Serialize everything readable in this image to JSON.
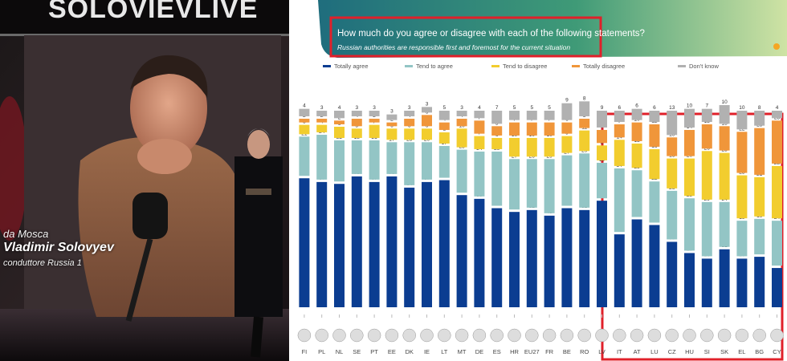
{
  "photo": {
    "sign_text": "SOLOVIEVLIVE",
    "caption_line1": "da Mosca",
    "caption_name": "Vladimir Solovyev",
    "caption_line3": "conduttore  Russia 1"
  },
  "header": {
    "question": "How much do you agree or disagree with each of the following statements?",
    "statement": "Russian authorities are responsible first and foremost for the current situation"
  },
  "colors": {
    "totally_agree": "#0b3d91",
    "tend_to_agree": "#93c5c5",
    "tend_to_disagree": "#f2cd2e",
    "totally_disagree": "#f0963a",
    "dont_know": "#b1b1b1",
    "highlight": "#e0202a"
  },
  "chart_data": {
    "type": "bar",
    "stacked": true,
    "orientation": "vertical",
    "title": "How much do you agree or disagree with each of the following statements?",
    "subtitle": "Russian authorities are responsible first and foremost for the current situation",
    "legend_placement": "top",
    "categories": [
      "FI",
      "PL",
      "NL",
      "SE",
      "PT",
      "EE",
      "DK",
      "IE",
      "LT",
      "MT",
      "DE",
      "ES",
      "HR",
      "EU27",
      "FR",
      "BE",
      "RO",
      "LV",
      "IT",
      "AT",
      "LU",
      "CZ",
      "HU",
      "SI",
      "SK",
      "EL",
      "BG",
      "CY"
    ],
    "series": [
      {
        "name": "Totally agree",
        "values": [
          69,
          67,
          66,
          70,
          67,
          70,
          64,
          67,
          68,
          60,
          58,
          53,
          51,
          52,
          49,
          53,
          52,
          57,
          39,
          47,
          44,
          35,
          29,
          26,
          31,
          26,
          27,
          21
        ]
      },
      {
        "name": "Tend to agree",
        "values": [
          21,
          24,
          22,
          18,
          21,
          17,
          23,
          20,
          17,
          23,
          24,
          29,
          27,
          26,
          29,
          27,
          29,
          19,
          34,
          25,
          22,
          26,
          28,
          29,
          24,
          19,
          19,
          24
        ]
      },
      {
        "name": "Tend to disagree",
        "values": [
          5,
          4,
          6,
          5,
          7,
          6,
          6,
          6,
          6,
          10,
          7,
          6,
          10,
          10,
          10,
          9,
          11,
          8,
          14,
          13,
          16,
          16,
          20,
          26,
          25,
          23,
          21,
          28
        ]
      },
      {
        "name": "Totally disagree",
        "values": [
          2,
          2,
          2,
          4,
          2,
          2,
          4,
          6,
          4,
          4,
          7,
          5,
          7,
          7,
          7,
          6,
          5,
          7,
          7,
          10,
          12,
          10,
          14,
          13,
          13,
          22,
          25,
          23
        ]
      },
      {
        "name": "Don't know",
        "values": [
          4,
          3,
          4,
          3,
          3,
          3,
          3,
          3,
          5,
          3,
          4,
          7,
          5,
          5,
          5,
          9,
          8,
          9,
          6,
          6,
          6,
          13,
          10,
          7,
          10,
          10,
          8,
          4
        ]
      }
    ],
    "highlighted_categories": [
      "IT",
      "AT",
      "LU",
      "CZ",
      "HU",
      "SI",
      "SK",
      "EL",
      "BG",
      "CY"
    ],
    "ylim": [
      0,
      100
    ]
  }
}
